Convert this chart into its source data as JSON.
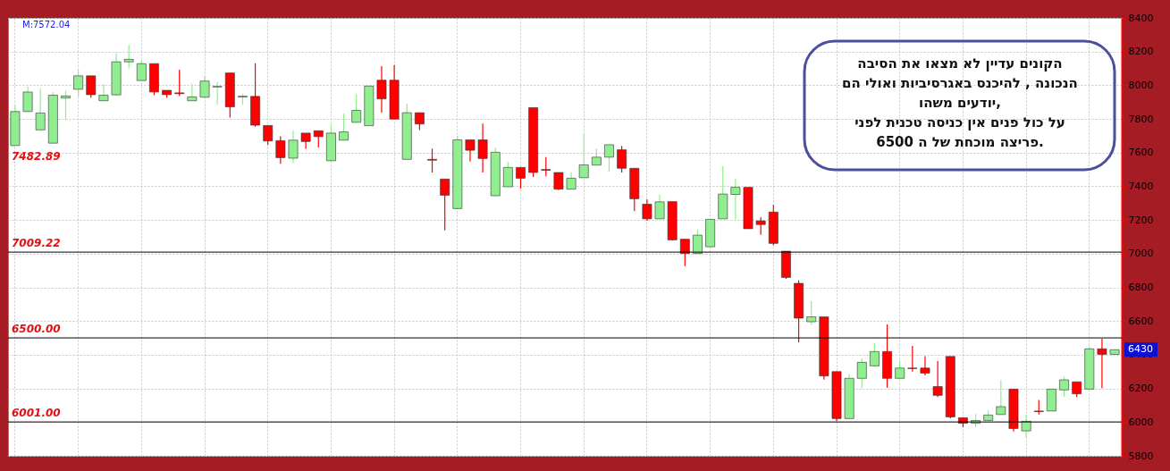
{
  "chart_data": {
    "type": "candlestick",
    "categories": [
      null,
      null,
      null,
      null,
      null,
      null,
      null,
      null,
      null,
      null,
      null,
      null,
      null,
      null,
      null,
      null,
      null,
      null,
      null,
      null,
      null,
      null,
      null,
      null,
      null,
      null,
      null,
      null,
      null,
      null,
      null,
      null,
      null,
      null,
      null,
      null,
      null,
      null,
      null,
      null,
      null,
      null,
      null,
      null,
      null,
      null,
      null,
      null,
      null,
      null,
      null,
      null,
      null,
      null,
      null,
      null,
      null,
      null,
      null,
      null,
      null,
      null,
      null,
      null,
      null,
      null,
      null,
      null,
      null,
      null,
      null,
      null,
      null,
      null,
      null,
      null,
      null,
      null,
      null,
      null,
      null,
      null,
      null,
      null,
      null,
      null,
      null,
      null
    ],
    "ohlc": [
      [
        7642,
        7881,
        7642,
        7844
      ],
      [
        7844,
        7993,
        7844,
        7960
      ],
      [
        7735,
        7979,
        7735,
        7835
      ],
      [
        7656,
        7959,
        7656,
        7941
      ],
      [
        7924,
        7967,
        7792,
        7936
      ],
      [
        7976,
        8092,
        7933,
        8056
      ],
      [
        8056,
        8056,
        7927,
        7944
      ],
      [
        7908,
        8009,
        7908,
        7941
      ],
      [
        7943,
        8191,
        7939,
        8139
      ],
      [
        8139,
        8239,
        8100,
        8154
      ],
      [
        8028,
        8149,
        8028,
        8128
      ],
      [
        8128,
        8128,
        7941,
        7960
      ],
      [
        7970,
        7970,
        7927,
        7944
      ],
      [
        7955,
        8092,
        7936,
        7950
      ],
      [
        7908,
        8009,
        7908,
        7931
      ],
      [
        7929,
        8056,
        7929,
        8025
      ],
      [
        7990,
        8019,
        7887,
        7993
      ],
      [
        8073,
        8073,
        7809,
        7872
      ],
      [
        7930,
        7948,
        7884,
        7935
      ],
      [
        7934,
        8130,
        7754,
        7763
      ],
      [
        7761,
        7761,
        7645,
        7669
      ],
      [
        7671,
        7697,
        7534,
        7570
      ],
      [
        7567,
        7732,
        7539,
        7674
      ],
      [
        7716,
        7716,
        7622,
        7666
      ],
      [
        7730,
        7730,
        7630,
        7695
      ],
      [
        7552,
        7765,
        7552,
        7716
      ],
      [
        7674,
        7832,
        7674,
        7723
      ],
      [
        7780,
        7947,
        7780,
        7851
      ],
      [
        7760,
        7995,
        7760,
        7995
      ],
      [
        8030,
        8114,
        7838,
        7919
      ],
      [
        8030,
        8120,
        7799,
        7799
      ],
      [
        7560,
        7889,
        7560,
        7837
      ],
      [
        7837,
        7837,
        7734,
        7770
      ],
      [
        7560,
        7624,
        7482,
        7555
      ],
      [
        7443,
        7443,
        7139,
        7347
      ],
      [
        7268,
        7699,
        7268,
        7676
      ],
      [
        7676,
        7676,
        7547,
        7614
      ],
      [
        7676,
        7773,
        7482,
        7565
      ],
      [
        7344,
        7631,
        7344,
        7602
      ],
      [
        7397,
        7545,
        7397,
        7512
      ],
      [
        7512,
        7512,
        7387,
        7448
      ],
      [
        7867,
        7867,
        7456,
        7482
      ],
      [
        7500,
        7573,
        7460,
        7495
      ],
      [
        7482,
        7482,
        7378,
        7383
      ],
      [
        7383,
        7484,
        7383,
        7448
      ],
      [
        7451,
        7708,
        7451,
        7527
      ],
      [
        7526,
        7624,
        7526,
        7573
      ],
      [
        7573,
        7647,
        7486,
        7647
      ],
      [
        7617,
        7640,
        7482,
        7507
      ],
      [
        7507,
        7507,
        7252,
        7326
      ],
      [
        7294,
        7323,
        7196,
        7207
      ],
      [
        7207,
        7351,
        7207,
        7308
      ],
      [
        7309,
        7309,
        7079,
        7082
      ],
      [
        7086,
        7086,
        6926,
        7001
      ],
      [
        7001,
        7144,
        7001,
        7110
      ],
      [
        7041,
        7204,
        7041,
        7204
      ],
      [
        7207,
        7521,
        7207,
        7354
      ],
      [
        7352,
        7443,
        7205,
        7394
      ],
      [
        7394,
        7394,
        7148,
        7148
      ],
      [
        7195,
        7217,
        7112,
        7173
      ],
      [
        7247,
        7290,
        7049,
        7061
      ],
      [
        7015,
        7015,
        6850,
        6859
      ],
      [
        6824,
        6842,
        6473,
        6617
      ],
      [
        6596,
        6718,
        6577,
        6625
      ],
      [
        6625,
        6625,
        6253,
        6274
      ],
      [
        6300,
        6300,
        6005,
        6021
      ],
      [
        6021,
        6286,
        6021,
        6260
      ],
      [
        6260,
        6378,
        6201,
        6355
      ],
      [
        6334,
        6471,
        6334,
        6419
      ],
      [
        6419,
        6580,
        6204,
        6260
      ],
      [
        6260,
        6365,
        6260,
        6321
      ],
      [
        6321,
        6452,
        6300,
        6318
      ],
      [
        6321,
        6391,
        6277,
        6291
      ],
      [
        6211,
        6362,
        6149,
        6159
      ],
      [
        6390,
        6390,
        6022,
        6031
      ],
      [
        6026,
        6026,
        5970,
        5993
      ],
      [
        5993,
        6048,
        5970,
        6010
      ],
      [
        6010,
        6069,
        6010,
        6042
      ],
      [
        6045,
        6248,
        6045,
        6092
      ],
      [
        6196,
        6196,
        5944,
        5962
      ],
      [
        5948,
        6043,
        5910,
        6005
      ],
      [
        6066,
        6131,
        6045,
        6062
      ],
      [
        6066,
        6196,
        6066,
        6196
      ],
      [
        6191,
        6269,
        6149,
        6251
      ],
      [
        6239,
        6239,
        6149,
        6168
      ],
      [
        6196,
        6450,
        6196,
        6435
      ],
      [
        6435,
        6495,
        6201,
        6402
      ],
      [
        6402,
        6430,
        6402,
        6430
      ]
    ],
    "colors": [
      "#90ee90",
      "#90ee90",
      "#90ee90",
      "#90ee90",
      "#90ee90",
      "#90ee90",
      "#ff0000",
      "#90ee90",
      "#90ee90",
      "#90ee90",
      "#90ee90",
      "#ff0000",
      "#ff0000",
      "#ff0000",
      "#90ee90",
      "#90ee90",
      "#90ee90",
      "#ff0000",
      "#90ee90",
      "#ff0000",
      "#ff0000",
      "#ff0000",
      "#90ee90",
      "#ff0000",
      "#ff0000",
      "#90ee90",
      "#90ee90",
      "#90ee90",
      "#90ee90",
      "#ff0000",
      "#ff0000",
      "#90ee90",
      "#ff0000",
      "#ff0000",
      "#ff0000",
      "#90ee90",
      "#ff0000",
      "#ff0000",
      "#90ee90",
      "#90ee90",
      "#ff0000",
      "#ff0000",
      "#ff0000",
      "#ff0000",
      "#90ee90",
      "#90ee90",
      "#90ee90",
      "#90ee90",
      "#ff0000",
      "#ff0000",
      "#ff0000",
      "#90ee90",
      "#ff0000",
      "#ff0000",
      "#90ee90",
      "#90ee90",
      "#90ee90",
      "#90ee90",
      "#ff0000",
      "#ff0000",
      "#ff0000",
      "#ff0000",
      "#ff0000",
      "#90ee90",
      "#ff0000",
      "#ff0000",
      "#90ee90",
      "#90ee90",
      "#90ee90",
      "#ff0000",
      "#90ee90",
      "#ff0000",
      "#ff0000",
      "#ff0000",
      "#ff0000",
      "#ff0000",
      "#90ee90",
      "#90ee90",
      "#90ee90",
      "#ff0000",
      "#90ee90",
      "#ff0000",
      "#90ee90",
      "#90ee90",
      "#ff0000",
      "#90ee90",
      "#ff0000",
      "#90ee90"
    ],
    "ylim": [
      5800,
      8400
    ],
    "yticks": [
      5800,
      6000,
      6200,
      6400,
      6600,
      6800,
      7000,
      7200,
      7400,
      7600,
      7800,
      8000,
      8200,
      8400
    ],
    "grid": true,
    "tick_labels": "y",
    "ref_lines": [
      {
        "axis": "y",
        "value": 7009.22,
        "label": "7009.22",
        "color": "#000000"
      },
      {
        "axis": "y",
        "value": 6500.0,
        "label": "6500.00",
        "color": "#000000"
      },
      {
        "axis": "y",
        "value": 6001.0,
        "label": "6001.00",
        "color": "#000000"
      }
    ],
    "annotations": [
      "M:7572.04",
      "הקונים עדיין לא  מצאו  את   הסיבה\nהנכונה , להיכנס  באגרסיביות  ואולי   הם\nיודעים משהו,\nעל כול פנים   אין  כניסה  טכנית לפני\nפריצה מוכחת של  ה  6500.",
      "7482.89",
      {
        "text": "6430",
        "y": 6430
      }
    ]
  }
}
